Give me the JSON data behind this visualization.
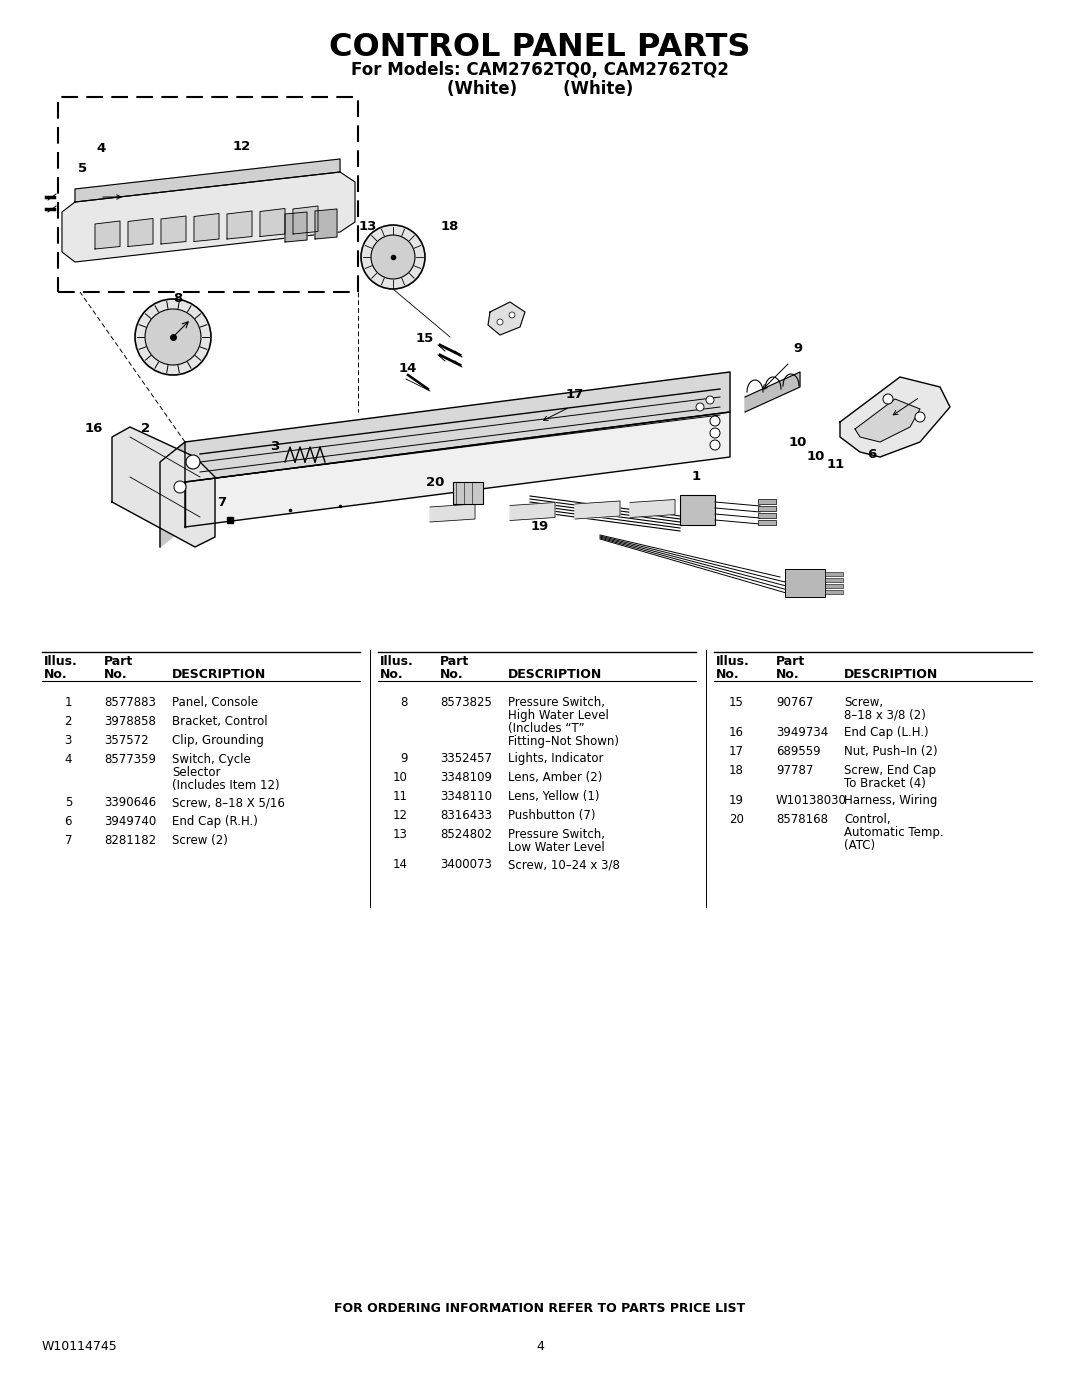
{
  "title": "CONTROL PANEL PARTS",
  "subtitle1": "For Models: CAM2762TQ0, CAM2762TQ2",
  "subtitle2": "(White)        (White)",
  "footer_text": "FOR ORDERING INFORMATION REFER TO PARTS PRICE LIST",
  "doc_number": "W10114745",
  "page_number": "4",
  "bg_color": "#ffffff",
  "text_color": "#000000",
  "table_col1": [
    {
      "illus": "1",
      "part": "8577883",
      "desc": "Panel, Console"
    },
    {
      "illus": "2",
      "part": "3978858",
      "desc": "Bracket, Control"
    },
    {
      "illus": "3",
      "part": "357572",
      "desc": "Clip, Grounding"
    },
    {
      "illus": "4",
      "part": "8577359",
      "desc": "Switch, Cycle\nSelector\n(Includes Item 12)"
    },
    {
      "illus": "5",
      "part": "3390646",
      "desc": "Screw, 8–18 X 5/16"
    },
    {
      "illus": "6",
      "part": "3949740",
      "desc": "End Cap (R.H.)"
    },
    {
      "illus": "7",
      "part": "8281182",
      "desc": "Screw (2)"
    }
  ],
  "table_col2": [
    {
      "illus": "8",
      "part": "8573825",
      "desc": "Pressure Switch,\nHigh Water Level\n(Includes “T”\nFitting–Not Shown)"
    },
    {
      "illus": "9",
      "part": "3352457",
      "desc": "Lights, Indicator"
    },
    {
      "illus": "10",
      "part": "3348109",
      "desc": "Lens, Amber (2)"
    },
    {
      "illus": "11",
      "part": "3348110",
      "desc": "Lens, Yellow (1)"
    },
    {
      "illus": "12",
      "part": "8316433",
      "desc": "Pushbutton (7)"
    },
    {
      "illus": "13",
      "part": "8524802",
      "desc": "Pressure Switch,\nLow Water Level"
    },
    {
      "illus": "14",
      "part": "3400073",
      "desc": "Screw, 10–24 x 3/8"
    }
  ],
  "table_col3": [
    {
      "illus": "15",
      "part": "90767",
      "desc": "Screw,\n8–18 x 3/8 (2)"
    },
    {
      "illus": "16",
      "part": "3949734",
      "desc": "End Cap (L.H.)"
    },
    {
      "illus": "17",
      "part": "689559",
      "desc": "Nut, Push–In (2)"
    },
    {
      "illus": "18",
      "part": "97787",
      "desc": "Screw, End Cap\nTo Bracket (4)"
    },
    {
      "illus": "19",
      "part": "W10138030",
      "desc": "Harness, Wiring"
    },
    {
      "illus": "20",
      "part": "8578168",
      "desc": "Control,\nAutomatic Temp.\n(ATC)"
    }
  ]
}
